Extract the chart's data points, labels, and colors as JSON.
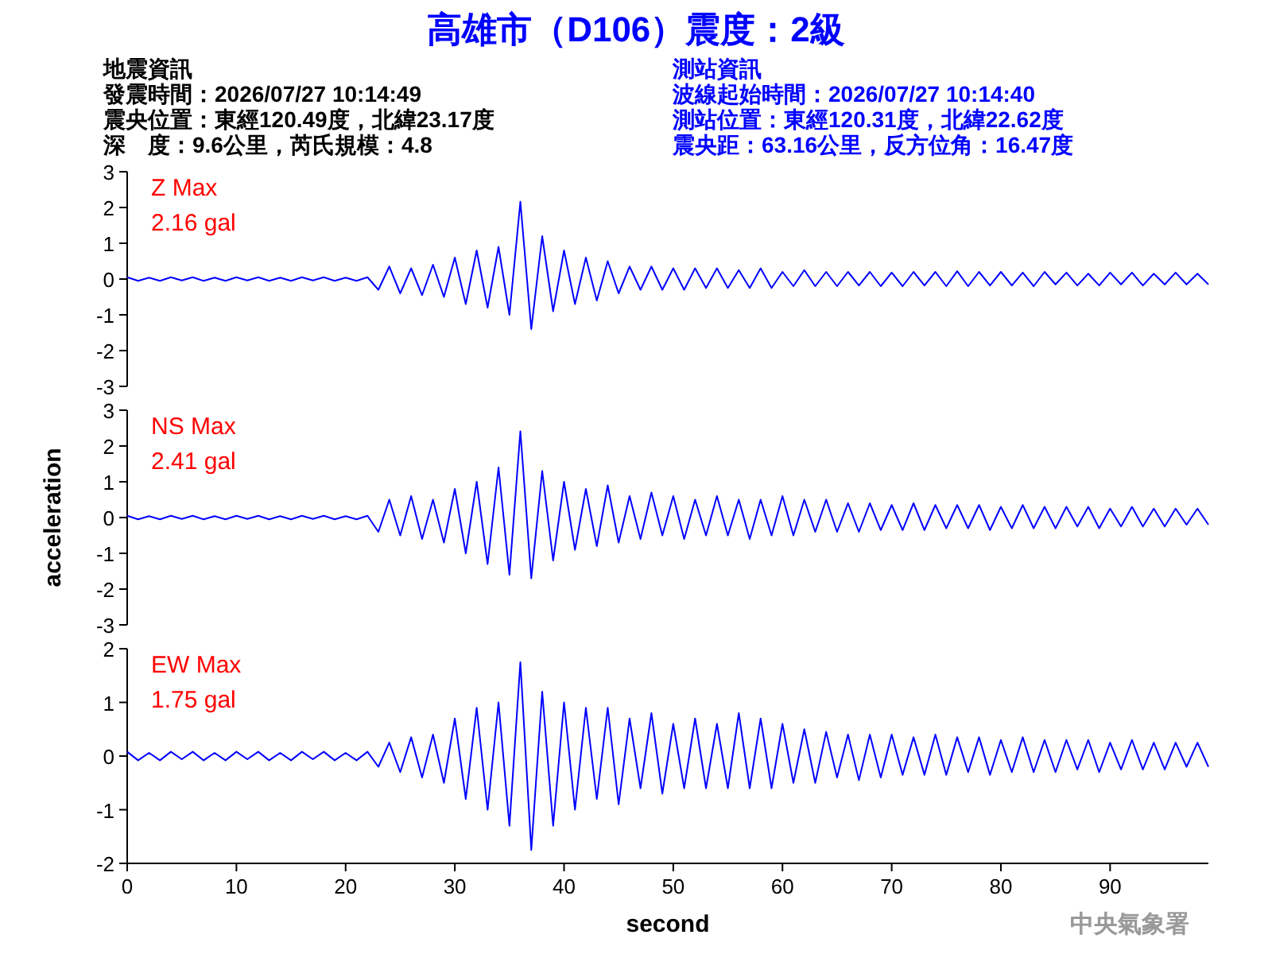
{
  "chart_data": [
    {
      "type": "line",
      "title": "高雄市（D106）震度：2級",
      "annotations": [
        "地震資訊",
        "發震時間：2026/07/27 10:14:49",
        "震央位置：東經120.49度，北緯23.17度",
        "深　度：9.6公里，芮氏規模：4.8",
        "測站資訊",
        "波線起始時間：2026/07/27 10:14:40",
        "測站位置：東經120.31度，北緯22.62度",
        "震央距：63.16公里，反方位角：16.47度",
        "Z Max",
        "2.16 gal"
      ],
      "x": [
        0,
        1,
        2,
        3,
        4,
        5,
        6,
        7,
        8,
        9,
        10,
        11,
        12,
        13,
        14,
        15,
        16,
        17,
        18,
        19,
        20,
        21,
        22,
        23,
        24,
        25,
        26,
        27,
        28,
        29,
        30,
        31,
        32,
        33,
        34,
        35,
        36,
        37,
        38,
        39,
        40,
        41,
        42,
        43,
        44,
        45,
        46,
        47,
        48,
        49,
        50,
        51,
        52,
        53,
        54,
        55,
        56,
        57,
        58,
        59,
        60,
        61,
        62,
        63,
        64,
        65,
        66,
        67,
        68,
        69,
        70,
        71,
        72,
        73,
        74,
        75,
        76,
        77,
        78,
        79,
        80,
        81,
        82,
        83,
        84,
        85,
        86,
        87,
        88,
        89,
        90,
        91,
        92,
        93,
        94,
        95,
        96,
        97,
        98,
        99
      ],
      "series": [
        {
          "color": "#0000ff",
          "values": [
            0.05,
            -0.05,
            0.04,
            -0.05,
            0.05,
            -0.04,
            0.05,
            -0.05,
            0.04,
            -0.05,
            0.05,
            -0.04,
            0.05,
            -0.05,
            0.04,
            -0.05,
            0.05,
            -0.04,
            0.05,
            -0.05,
            0.04,
            -0.05,
            0.05,
            -0.3,
            0.35,
            -0.4,
            0.3,
            -0.45,
            0.4,
            -0.5,
            0.6,
            -0.7,
            0.8,
            -0.8,
            0.9,
            -1.0,
            2.16,
            -1.4,
            1.2,
            -0.9,
            0.8,
            -0.7,
            0.6,
            -0.6,
            0.5,
            -0.4,
            0.35,
            -0.3,
            0.35,
            -0.3,
            0.3,
            -0.3,
            0.3,
            -0.25,
            0.3,
            -0.25,
            0.25,
            -0.25,
            0.3,
            -0.25,
            0.2,
            -0.2,
            0.25,
            -0.2,
            0.2,
            -0.2,
            0.2,
            -0.18,
            0.2,
            -0.2,
            0.18,
            -0.2,
            0.2,
            -0.18,
            0.2,
            -0.2,
            0.22,
            -0.2,
            0.2,
            -0.18,
            0.2,
            -0.18,
            0.18,
            -0.2,
            0.2,
            -0.15,
            0.18,
            -0.18,
            0.15,
            -0.18,
            0.18,
            -0.15,
            0.18,
            -0.18,
            0.15,
            -0.15,
            0.18,
            -0.15,
            0.15,
            -0.15
          ]
        }
      ],
      "ylim": [
        -3,
        3
      ],
      "yticks": [
        -3,
        -2,
        -1,
        0,
        1,
        2,
        3
      ],
      "tick_labels": "y"
    },
    {
      "type": "line",
      "ylabel": "acceleration",
      "annotations": [
        "NS Max",
        "2.41 gal"
      ],
      "x": [
        0,
        1,
        2,
        3,
        4,
        5,
        6,
        7,
        8,
        9,
        10,
        11,
        12,
        13,
        14,
        15,
        16,
        17,
        18,
        19,
        20,
        21,
        22,
        23,
        24,
        25,
        26,
        27,
        28,
        29,
        30,
        31,
        32,
        33,
        34,
        35,
        36,
        37,
        38,
        39,
        40,
        41,
        42,
        43,
        44,
        45,
        46,
        47,
        48,
        49,
        50,
        51,
        52,
        53,
        54,
        55,
        56,
        57,
        58,
        59,
        60,
        61,
        62,
        63,
        64,
        65,
        66,
        67,
        68,
        69,
        70,
        71,
        72,
        73,
        74,
        75,
        76,
        77,
        78,
        79,
        80,
        81,
        82,
        83,
        84,
        85,
        86,
        87,
        88,
        89,
        90,
        91,
        92,
        93,
        94,
        95,
        96,
        97,
        98,
        99
      ],
      "series": [
        {
          "color": "#0000ff",
          "values": [
            0.05,
            -0.05,
            0.04,
            -0.05,
            0.05,
            -0.04,
            0.05,
            -0.05,
            0.04,
            -0.05,
            0.05,
            -0.04,
            0.05,
            -0.05,
            0.04,
            -0.05,
            0.05,
            -0.04,
            0.05,
            -0.05,
            0.04,
            -0.05,
            0.05,
            -0.4,
            0.5,
            -0.5,
            0.6,
            -0.6,
            0.5,
            -0.7,
            0.8,
            -1.0,
            1.0,
            -1.3,
            1.4,
            -1.6,
            2.41,
            -1.7,
            1.3,
            -1.2,
            1.0,
            -0.9,
            0.8,
            -0.8,
            0.9,
            -0.7,
            0.6,
            -0.6,
            0.7,
            -0.5,
            0.6,
            -0.6,
            0.5,
            -0.5,
            0.6,
            -0.5,
            0.5,
            -0.6,
            0.5,
            -0.5,
            0.6,
            -0.5,
            0.5,
            -0.4,
            0.5,
            -0.4,
            0.4,
            -0.4,
            0.4,
            -0.35,
            0.35,
            -0.35,
            0.4,
            -0.35,
            0.35,
            -0.3,
            0.35,
            -0.3,
            0.35,
            -0.35,
            0.3,
            -0.3,
            0.35,
            -0.3,
            0.3,
            -0.3,
            0.3,
            -0.25,
            0.3,
            -0.3,
            0.25,
            -0.25,
            0.3,
            -0.25,
            0.25,
            -0.25,
            0.25,
            -0.2,
            0.25,
            -0.2
          ]
        }
      ],
      "ylim": [
        -3,
        3
      ],
      "yticks": [
        -3,
        -2,
        -1,
        0,
        1,
        2,
        3
      ],
      "tick_labels": "y"
    },
    {
      "type": "line",
      "xlabel": "second",
      "annotations": [
        "中央氣象署",
        "EW Max",
        "1.75 gal"
      ],
      "x": [
        0,
        1,
        2,
        3,
        4,
        5,
        6,
        7,
        8,
        9,
        10,
        11,
        12,
        13,
        14,
        15,
        16,
        17,
        18,
        19,
        20,
        21,
        22,
        23,
        24,
        25,
        26,
        27,
        28,
        29,
        30,
        31,
        32,
        33,
        34,
        35,
        36,
        37,
        38,
        39,
        40,
        41,
        42,
        43,
        44,
        45,
        46,
        47,
        48,
        49,
        50,
        51,
        52,
        53,
        54,
        55,
        56,
        57,
        58,
        59,
        60,
        61,
        62,
        63,
        64,
        65,
        66,
        67,
        68,
        69,
        70,
        71,
        72,
        73,
        74,
        75,
        76,
        77,
        78,
        79,
        80,
        81,
        82,
        83,
        84,
        85,
        86,
        87,
        88,
        89,
        90,
        91,
        92,
        93,
        94,
        95,
        96,
        97,
        98,
        99
      ],
      "series": [
        {
          "color": "#0000ff",
          "values": [
            0.08,
            -0.08,
            0.06,
            -0.08,
            0.08,
            -0.06,
            0.08,
            -0.08,
            0.06,
            -0.08,
            0.08,
            -0.06,
            0.08,
            -0.08,
            0.06,
            -0.08,
            0.08,
            -0.06,
            0.08,
            -0.08,
            0.06,
            -0.08,
            0.08,
            -0.2,
            0.25,
            -0.3,
            0.35,
            -0.4,
            0.4,
            -0.5,
            0.7,
            -0.8,
            0.9,
            -1.0,
            1.0,
            -1.3,
            1.75,
            -1.75,
            1.2,
            -1.3,
            1.0,
            -1.0,
            0.9,
            -0.8,
            0.9,
            -0.9,
            0.7,
            -0.6,
            0.8,
            -0.7,
            0.6,
            -0.6,
            0.7,
            -0.6,
            0.6,
            -0.6,
            0.8,
            -0.6,
            0.7,
            -0.6,
            0.6,
            -0.5,
            0.5,
            -0.5,
            0.45,
            -0.4,
            0.4,
            -0.45,
            0.4,
            -0.4,
            0.4,
            -0.35,
            0.35,
            -0.35,
            0.4,
            -0.35,
            0.35,
            -0.3,
            0.35,
            -0.35,
            0.3,
            -0.3,
            0.35,
            -0.3,
            0.3,
            -0.3,
            0.3,
            -0.25,
            0.3,
            -0.3,
            0.25,
            -0.25,
            0.3,
            -0.25,
            0.25,
            -0.25,
            0.25,
            -0.2,
            0.25,
            -0.2
          ]
        }
      ],
      "xlim": [
        0,
        99
      ],
      "ylim": [
        -2,
        2
      ],
      "yticks": [
        -2,
        -1,
        0,
        1,
        2
      ],
      "xticks": [
        0,
        10,
        20,
        30,
        40,
        50,
        60,
        70,
        80,
        90
      ]
    }
  ]
}
